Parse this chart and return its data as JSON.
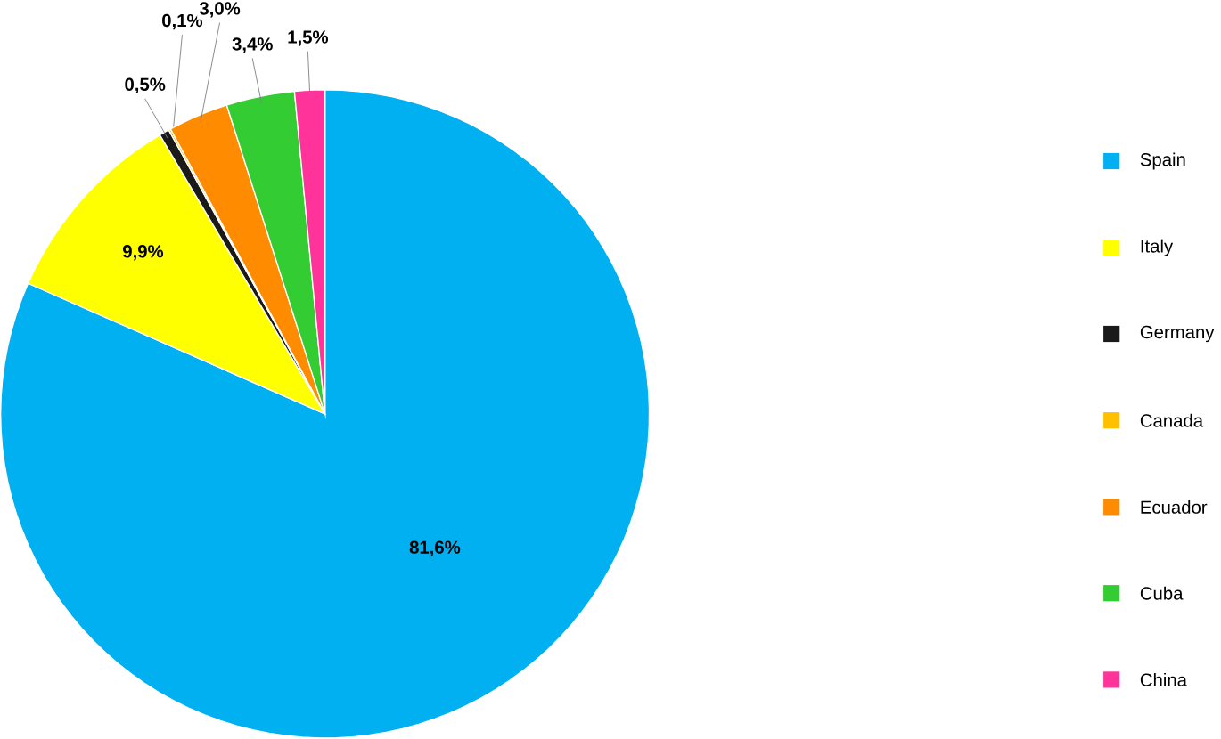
{
  "chart_data": {
    "type": "pie",
    "categories": [
      "Spain",
      "Italy",
      "Germany",
      "Canada",
      "Ecuador",
      "Cuba",
      "China"
    ],
    "values": [
      81.6,
      9.9,
      0.5,
      0.1,
      3.0,
      3.4,
      1.5
    ],
    "value_labels": [
      "81,6%",
      "9,9%",
      "0,5%",
      "0,1%",
      "3,0%",
      "3,4%",
      "1,5%"
    ],
    "colors": [
      "#00b0f0",
      "#ffff00",
      "#1a1a1a",
      "#ffc000",
      "#ff8c00",
      "#33cc33",
      "#ff3399"
    ],
    "legend": "right"
  }
}
